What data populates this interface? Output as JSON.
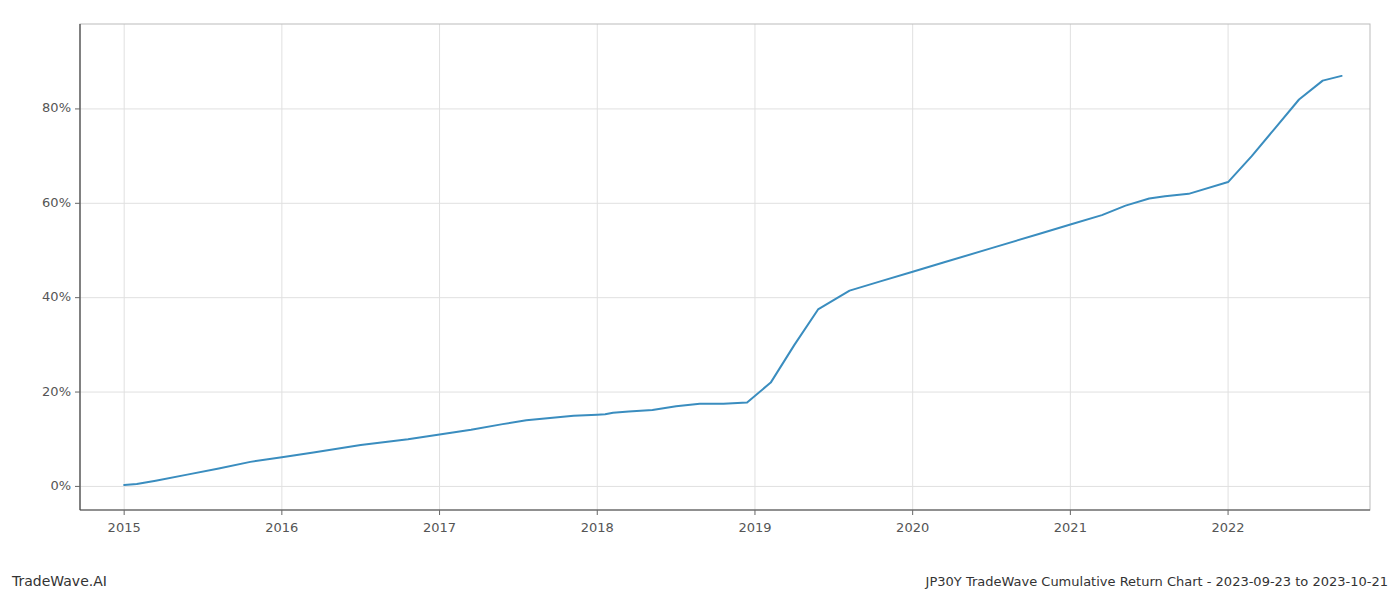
{
  "chart_data": {
    "type": "line",
    "title": "JP30Y TradeWave Cumulative Return Chart - 2023-09-23 to 2023-10-21",
    "annotations": [
      "TradeWave.AI"
    ],
    "x": [
      2015.0,
      2015.08,
      2015.2,
      2015.4,
      2015.6,
      2015.8,
      2016.0,
      2016.2,
      2016.5,
      2016.8,
      2017.0,
      2017.2,
      2017.4,
      2017.55,
      2017.7,
      2017.85,
      2018.0,
      2018.05,
      2018.1,
      2018.2,
      2018.35,
      2018.5,
      2018.65,
      2018.8,
      2018.95,
      2019.1,
      2019.25,
      2019.4,
      2019.6,
      2019.8,
      2020.0,
      2020.2,
      2020.5,
      2020.8,
      2021.0,
      2021.2,
      2021.35,
      2021.5,
      2021.6,
      2021.75,
      2022.0,
      2022.15,
      2022.3,
      2022.45,
      2022.6,
      2022.72
    ],
    "values": [
      0.3,
      0.5,
      1.2,
      2.5,
      3.8,
      5.2,
      6.2,
      7.2,
      8.8,
      10.0,
      11.0,
      12.0,
      13.2,
      14.0,
      14.5,
      15.0,
      15.2,
      15.3,
      15.6,
      15.9,
      16.2,
      17.0,
      17.5,
      17.5,
      17.8,
      22.0,
      30.0,
      37.5,
      41.5,
      43.5,
      45.5,
      47.5,
      50.5,
      53.5,
      55.5,
      57.5,
      59.5,
      61.0,
      61.5,
      62.0,
      64.5,
      70.0,
      76.0,
      82.0,
      86.0,
      87.0
    ],
    "color": "#3a8dbf",
    "xlim": [
      2014.72,
      2022.9
    ],
    "ylim": [
      -5,
      98
    ],
    "xticks": [
      2015,
      2016,
      2017,
      2018,
      2019,
      2020,
      2021,
      2022
    ],
    "yticks": [
      {
        "value": 0,
        "label": "0%"
      },
      {
        "value": 20,
        "label": "20%"
      },
      {
        "value": 40,
        "label": "40%"
      },
      {
        "value": 60,
        "label": "60%"
      },
      {
        "value": 80,
        "label": "80%"
      }
    ],
    "grid": true
  }
}
